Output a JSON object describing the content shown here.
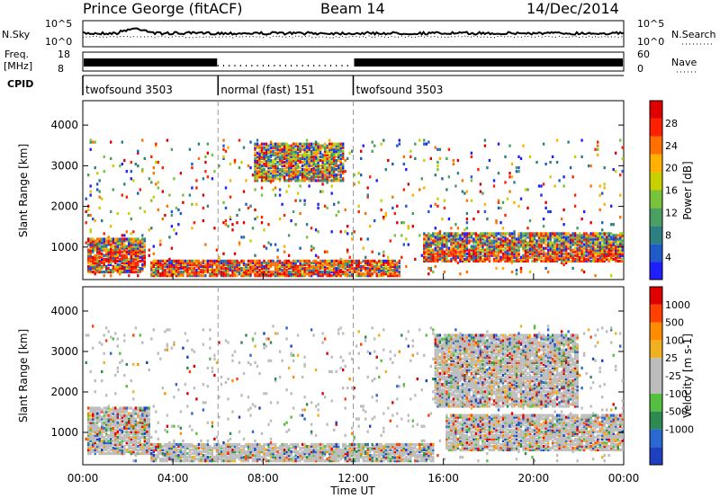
{
  "header": {
    "station": "Prince George (fitACF)",
    "beam": "Beam 14",
    "date": "14/Dec/2014"
  },
  "top_panels": {
    "nsky_label": "N.Sky",
    "nsky_ticks": [
      "10^5",
      "10^0"
    ],
    "nsearch_label": "N.Search",
    "nsearch_ticks": [
      "10^5",
      "10^0"
    ],
    "freq_label": "Freq.",
    "freq_unit": "[MHz]",
    "freq_ticks": [
      "18",
      "8"
    ],
    "nave_label": "Nave",
    "nave_ticks": [
      "60",
      "0"
    ],
    "cpid_label": "CPID",
    "cpid_segments": [
      {
        "label": "twofsound 3503",
        "start_hour": 0,
        "end_hour": 6
      },
      {
        "label": "normal (fast) 151",
        "start_hour": 6,
        "end_hour": 12
      },
      {
        "label": "twofsound 3503",
        "start_hour": 12,
        "end_hour": 24
      }
    ]
  },
  "chart_data": [
    {
      "type": "heatmap",
      "title": "",
      "xlabel": "Time UT",
      "ylabel": "Slant Range [km]",
      "xlim": [
        0,
        24
      ],
      "ylim": [
        200,
        4600
      ],
      "x_ticks": [
        "00:00",
        "04:00",
        "08:00",
        "12:00",
        "16:00",
        "20:00",
        "00:00"
      ],
      "y_ticks": [
        1000,
        2000,
        3000,
        4000
      ],
      "colorbar_label": "Power [dB]",
      "colorbar_ticks": [
        4,
        8,
        12,
        16,
        20,
        24,
        28
      ],
      "colorbar_range": [
        0,
        32
      ],
      "colorbar_colors": [
        "#1e1eff",
        "#1e5ac8",
        "#2e7f7f",
        "#4aa060",
        "#78c23c",
        "#c8d000",
        "#ffb000",
        "#ff7000",
        "#ff2000",
        "#e00000"
      ],
      "mode_changes_hour": [
        6,
        12
      ],
      "regions": [
        {
          "name": "ground scatter band",
          "t_start": 0.2,
          "t_end": 2.8,
          "r_min": 350,
          "r_max": 1200,
          "power_db": 18
        },
        {
          "name": "near range echoes",
          "t_start": 3.0,
          "t_end": 14.0,
          "r_min": 250,
          "r_max": 650,
          "power_db": 20
        },
        {
          "name": "morning patches",
          "t_start": 7.5,
          "t_end": 11.5,
          "r_min": 2600,
          "r_max": 3500,
          "power_db": 12
        },
        {
          "name": "evening band",
          "t_start": 15.0,
          "t_end": 24.0,
          "r_min": 600,
          "r_max": 1300,
          "power_db": 24
        }
      ]
    },
    {
      "type": "heatmap",
      "title": "",
      "xlabel": "Time UT",
      "ylabel": "Slant Range [km]",
      "xlim": [
        0,
        24
      ],
      "ylim": [
        200,
        4600
      ],
      "x_ticks": [
        "00:00",
        "04:00",
        "08:00",
        "12:00",
        "16:00",
        "20:00",
        "00:00"
      ],
      "y_ticks": [
        1000,
        2000,
        3000,
        4000
      ],
      "colorbar_label": "Velocity [m s-1]",
      "colorbar_ticks": [
        "1000",
        "500",
        "100",
        "25",
        "-25",
        "-100",
        "-500",
        "-1000"
      ],
      "colorbar_colors": [
        "#1e40c0",
        "#2a6ad0",
        "#2e8a50",
        "#55c040",
        "#bcbcbc",
        "#bcbcbc",
        "#f0b020",
        "#ff8c00",
        "#ff4000",
        "#e00000"
      ],
      "mode_changes_hour": [
        6,
        12
      ],
      "regions": [
        {
          "name": "ground scatter low velocity",
          "t_start": 0.2,
          "t_end": 3.0,
          "r_min": 400,
          "r_max": 1600,
          "velocity": 0
        },
        {
          "name": "near range negative",
          "t_start": 3.0,
          "t_end": 15.5,
          "r_min": 250,
          "r_max": 700,
          "velocity": -100
        },
        {
          "name": "evening ground scatter",
          "t_start": 16.0,
          "t_end": 24.0,
          "r_min": 500,
          "r_max": 1400,
          "velocity": 0
        },
        {
          "name": "evening streaks",
          "t_start": 15.5,
          "t_end": 22.0,
          "r_min": 1600,
          "r_max": 3400,
          "velocity": -400
        }
      ]
    }
  ]
}
